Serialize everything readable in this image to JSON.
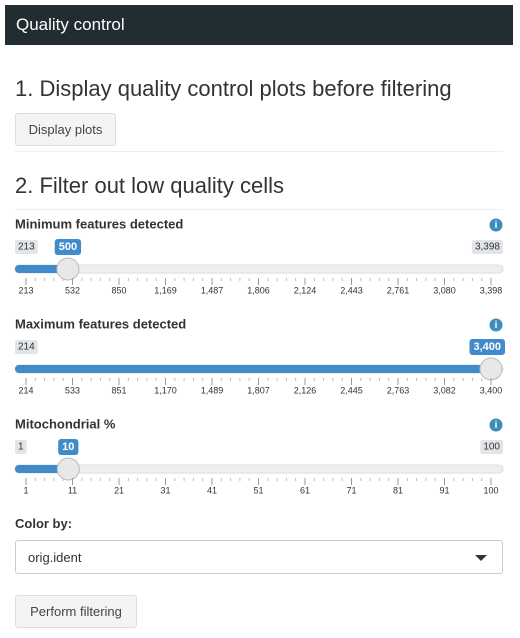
{
  "header": {
    "title": "Quality control"
  },
  "sections": [
    {
      "heading": "1. Display quality control plots before filtering",
      "button": "Display plots"
    },
    {
      "heading": "2. Filter out low quality cells"
    }
  ],
  "sliders": [
    {
      "label": "Minimum features detected",
      "min_label": "213",
      "max_label": "3,398",
      "value": 500,
      "ticks": [
        213,
        532,
        850,
        {
          "value": 1169,
          "label": "1,169"
        },
        {
          "value": 1487,
          "label": "1,487"
        },
        {
          "value": 1806,
          "label": "1,806"
        },
        {
          "value": 2124,
          "label": "2,124"
        },
        {
          "value": 2443,
          "label": "2,443"
        },
        {
          "value": 2761,
          "label": "2,761"
        },
        {
          "value": 3080,
          "label": "3,080"
        },
        {
          "value": 3398,
          "label": "3,398"
        }
      ]
    },
    {
      "label": "Maximum features detected",
      "min_label": "214",
      "value": {
        "value": 3400,
        "label": "3,400"
      },
      "ticks": [
        214,
        533,
        851,
        {
          "value": 1170,
          "label": "1,170"
        },
        {
          "value": 1489,
          "label": "1,489"
        },
        {
          "value": 1807,
          "label": "1,807"
        },
        {
          "value": 2126,
          "label": "2,126"
        },
        {
          "value": 2445,
          "label": "2,445"
        },
        {
          "value": 2763,
          "label": "2,763"
        },
        {
          "value": 3082,
          "label": "3,082"
        },
        {
          "value": 3400,
          "label": "3,400"
        }
      ]
    },
    {
      "label": "Mitochondrial %",
      "min_label": "1",
      "max_label": "100",
      "value": 10,
      "ticks": [
        1,
        11,
        21,
        31,
        41,
        51,
        61,
        71,
        81,
        91,
        100
      ]
    }
  ],
  "color_by": {
    "label": "Color by:",
    "selected": "orig.ident"
  },
  "filter_button": "Perform filtering"
}
